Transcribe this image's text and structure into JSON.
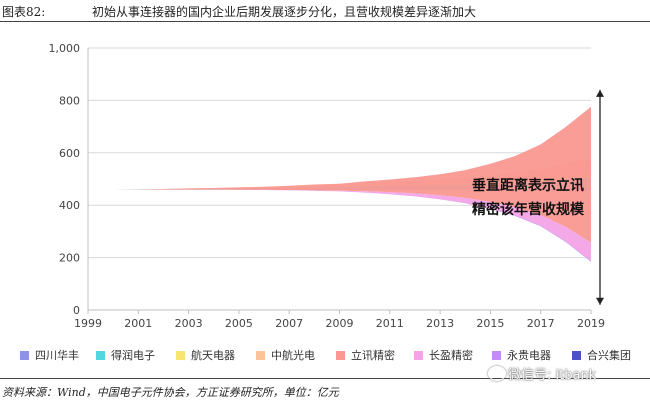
{
  "header": {
    "figure_label": "图表82:",
    "title": "初始从事连接器的国内企业后期发展逐步分化，且营收规模差异逐渐加大"
  },
  "footer": {
    "source": "资料来源：Wind，中国电子元件协会，方正证券研究所，单位：亿元",
    "watermark": "微信号: itbank"
  },
  "chart_data": {
    "type": "area",
    "x": [
      1999,
      2000,
      2001,
      2002,
      2003,
      2004,
      2005,
      2006,
      2007,
      2008,
      2009,
      2010,
      2011,
      2012,
      2013,
      2014,
      2015,
      2016,
      2017,
      2018,
      2019
    ],
    "xticks": [
      1999,
      2001,
      2003,
      2005,
      2007,
      2009,
      2011,
      2013,
      2015,
      2017,
      2019
    ],
    "xlim": [
      1999,
      2019
    ],
    "ylim": [
      0,
      1000
    ],
    "yticks": [
      0,
      200,
      400,
      600,
      800,
      1000
    ],
    "ytick_labels": [
      "0",
      "200",
      "400",
      "600",
      "800",
      "1,000"
    ],
    "baseline": 460,
    "series": [
      {
        "name": "四川华丰",
        "color": "#8e93e8",
        "direction": "down",
        "values": [
          0,
          0,
          0,
          0.5,
          0.5,
          0.5,
          1,
          1,
          1.5,
          1.5,
          1.5,
          2,
          2,
          2,
          2,
          2.5,
          2.5,
          2.5,
          3,
          3,
          3
        ]
      },
      {
        "name": "得润电子",
        "color": "#53d6e0",
        "direction": "up",
        "values": [
          0,
          0,
          0.5,
          1,
          2,
          3,
          4,
          5,
          7,
          9,
          10,
          14,
          15,
          16,
          17,
          19,
          22,
          25,
          30,
          40,
          45
        ]
      },
      {
        "name": "航天电器",
        "color": "#f7e56f",
        "direction": "up",
        "values": [
          0,
          0,
          0,
          0.5,
          1,
          1,
          1.5,
          2,
          2,
          3,
          3,
          4,
          5,
          6,
          7,
          8,
          9,
          10,
          12,
          14,
          16
        ]
      },
      {
        "name": "中航光电",
        "color": "#fbc39a",
        "direction": "up",
        "values": [
          0,
          0,
          0,
          0.5,
          1,
          1.5,
          2,
          3,
          4,
          5,
          6,
          8,
          10,
          12,
          14,
          17,
          22,
          28,
          35,
          45,
          55
        ]
      },
      {
        "name": "立讯精密",
        "color": "#fa9891",
        "direction": "both",
        "values": [
          0,
          0,
          0,
          0,
          0,
          0,
          0.5,
          1,
          2,
          4,
          6,
          10,
          16,
          26,
          40,
          60,
          90,
          130,
          190,
          280,
          400
        ]
      },
      {
        "name": "长盈精密",
        "color": "#f3a3e6",
        "direction": "down",
        "values": [
          0,
          0,
          0,
          0,
          0,
          0,
          0,
          0.5,
          1,
          2,
          3,
          5,
          8,
          11,
          15,
          19,
          25,
          32,
          40,
          55,
          70
        ]
      },
      {
        "name": "永贵电器",
        "color": "#c28cf2",
        "direction": "down",
        "values": [
          0,
          0,
          0,
          0,
          0,
          0,
          0,
          0,
          0,
          0,
          0,
          0,
          0,
          0.5,
          1,
          1,
          1.5,
          2,
          2,
          2.5,
          3
        ]
      },
      {
        "name": "合兴集团",
        "color": "#4d4fc6",
        "direction": "down",
        "values": [
          0,
          0,
          0,
          0,
          0,
          0,
          0,
          0,
          0,
          0,
          0,
          0,
          0,
          0,
          0,
          0,
          0,
          0,
          0,
          0,
          0
        ]
      }
    ],
    "annotation": {
      "text_line1": "垂直距离表示立讯",
      "text_line2": "精密该年营收规模",
      "arrow_from": 840,
      "arrow_to": 20
    },
    "legend_position": "bottom"
  }
}
